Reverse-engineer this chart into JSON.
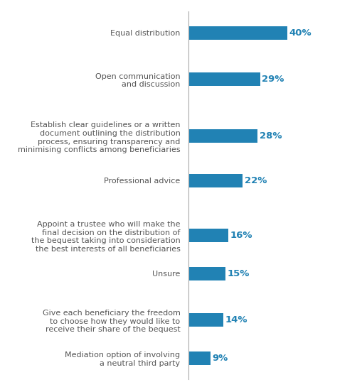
{
  "categories": [
    "Equal distribution",
    "Open communication\nand discussion",
    "Establish clear guidelines or a written\ndocument outlining the distribution\nprocess, ensuring transparency and\nminimising conflicts among beneficiaries",
    "Professional advice",
    "Appoint a trustee who will make the\nfinal decision on the distribution of\nthe bequest taking into consideration\nthe best interests of all beneficiaries",
    "Unsure",
    "Give each beneficiary the freedom\nto choose how they would like to\nreceive their share of the bequest",
    "Mediation option of involving\na neutral third party"
  ],
  "values": [
    40,
    29,
    28,
    22,
    16,
    15,
    14,
    9
  ],
  "bar_color": "#2182b4",
  "label_color": "#2182b4",
  "text_color": "#555555",
  "background_color": "#ffffff",
  "bar_height": 0.32,
  "xlim": [
    0,
    50
  ],
  "label_fontsize": 8.0,
  "value_fontsize": 9.5,
  "y_positions": [
    7.7,
    6.6,
    5.25,
    4.2,
    2.9,
    2.0,
    0.9,
    0.0
  ]
}
